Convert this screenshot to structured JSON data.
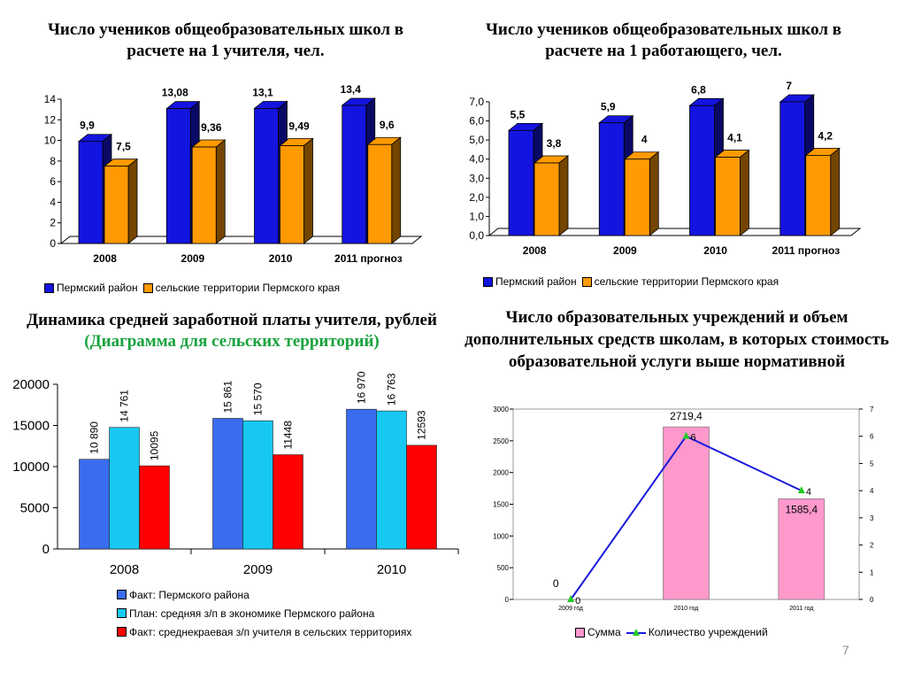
{
  "titles": {
    "t1": "Число учеников общеобразовательных школ в расчете на 1 учителя, чел.",
    "t2": "Число учеников общеобразовательных школ в расчете на 1 работающего, чел.",
    "t3_main": "Динамика средней заработной платы учителя, рублей",
    "t3_green": "(Диаграмма для сельских территорий)",
    "t4": "Число образовательных учреждений и объем дополнительных средств школам, в которых стоимость образовательной услуги выше нормативной"
  },
  "page_number": "7",
  "colors": {
    "blue3d": "#1414e0",
    "orange3d": "#ff9a00",
    "blue": "#3a6cf0",
    "cyan": "#16c8f2",
    "red": "#ff0000",
    "pink": "#ff99cc",
    "line": "#1a1adc",
    "marker": "#22cc22"
  },
  "chart_data": [
    {
      "type": "bar",
      "title": "Число учеников общеобразовательных школ в расчете на 1 учителя, чел.",
      "categories": [
        "2008",
        "2009",
        "2010",
        "2011 прогноз"
      ],
      "series": [
        {
          "name": "Пермский район",
          "values": [
            9.9,
            13.08,
            13.1,
            13.4
          ],
          "labels": [
            "9,9",
            "13,08",
            "13,1",
            "13,4"
          ]
        },
        {
          "name": "сельские территории Пермского края",
          "values": [
            7.5,
            9.36,
            9.49,
            9.6
          ],
          "labels": [
            "7,5",
            "9,36",
            "9,49",
            "9,6"
          ]
        }
      ],
      "yticks": [
        "0",
        "2",
        "4",
        "6",
        "8",
        "10",
        "12",
        "14"
      ],
      "ylim": [
        0,
        14
      ],
      "legend": "bottom"
    },
    {
      "type": "bar",
      "title": "Число учеников общеобразовательных школ в расчете на 1 работающего, чел.",
      "categories": [
        "2008",
        "2009",
        "2010",
        "2011 прогноз"
      ],
      "series": [
        {
          "name": "Пермский район",
          "values": [
            5.5,
            5.9,
            6.8,
            7
          ],
          "labels": [
            "5,5",
            "5,9",
            "6,8",
            "7"
          ]
        },
        {
          "name": "сельские территории Пермского края",
          "values": [
            3.8,
            4,
            4.1,
            4.2
          ],
          "labels": [
            "3,8",
            "4",
            "4,1",
            "4,2"
          ]
        }
      ],
      "yticks": [
        "0,0",
        "1,0",
        "2,0",
        "3,0",
        "4,0",
        "5,0",
        "6,0",
        "7,0"
      ],
      "ylim": [
        0,
        7
      ],
      "legend": "bottom"
    },
    {
      "type": "bar",
      "title": "Динамика средней заработной платы учителя, рублей (Диаграмма для сельских территорий)",
      "categories": [
        "2008",
        "2009",
        "2010"
      ],
      "series": [
        {
          "name": "Факт: Пермского района",
          "values": [
            10890,
            15861,
            16970
          ],
          "labels": [
            "10 890",
            "15 861",
            "16 970"
          ]
        },
        {
          "name": "План: средняя з/п в экономике Пермского района",
          "values": [
            14761,
            15570,
            16763
          ],
          "labels": [
            "14 761",
            "15 570",
            "16 763"
          ]
        },
        {
          "name": "Факт: среднекраевая з/п учителя в сельских территориях",
          "values": [
            10095,
            11448,
            12593
          ],
          "labels": [
            "10095",
            "11448",
            "12593"
          ]
        }
      ],
      "yticks": [
        "0",
        "5000",
        "10000",
        "15000",
        "20000"
      ],
      "ylim": [
        0,
        20000
      ],
      "legend": "bottom"
    },
    {
      "type": "bar",
      "title": "Число образовательных учреждений и объем дополнительных средств школам, в которых стоимость образовательной услуги выше нормативной",
      "categories": [
        "2009 год",
        "2010 год",
        "2011 год"
      ],
      "series": [
        {
          "name": "Сумма",
          "type": "bar",
          "values": [
            0,
            2719.4,
            1585.4
          ],
          "labels": [
            "0",
            "2719,4",
            "1585,4"
          ]
        },
        {
          "name": "Количество учреждений",
          "type": "line",
          "axis": "right",
          "values": [
            0,
            6,
            4
          ],
          "labels": [
            "0",
            "6",
            "4"
          ]
        }
      ],
      "yticks": [
        "0",
        "500",
        "1000",
        "1500",
        "2000",
        "2500",
        "3000"
      ],
      "ylim": [
        0,
        3000
      ],
      "y2ticks": [
        "0",
        "1",
        "2",
        "3",
        "4",
        "5",
        "6",
        "7"
      ],
      "y2lim": [
        0,
        7
      ],
      "legend": "bottom"
    }
  ]
}
